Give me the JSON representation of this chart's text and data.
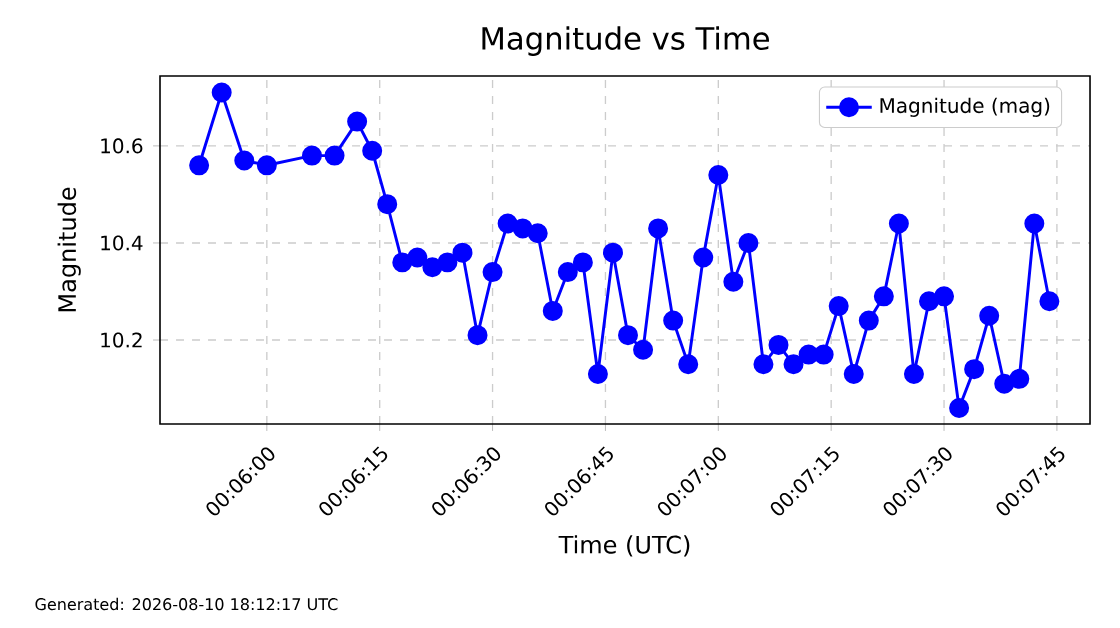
{
  "chart_data": {
    "type": "line",
    "title": "Magnitude vs Time",
    "xlabel": "Time (UTC)",
    "ylabel": "Magnitude",
    "annotations": [
      "Generated: 2026-08-10 18:12:17 UTC"
    ],
    "x": [
      0.0975,
      0.098333,
      0.099167,
      0.1,
      0.101667,
      0.1025,
      0.103333,
      0.103889,
      0.104444,
      0.105,
      0.105556,
      0.106111,
      0.106667,
      0.107222,
      0.107778,
      0.108333,
      0.108889,
      0.109444,
      0.11,
      0.110556,
      0.111111,
      0.111667,
      0.112222,
      0.112778,
      0.113333,
      0.113889,
      0.114444,
      0.115,
      0.115556,
      0.116111,
      0.116667,
      0.117222,
      0.117778,
      0.118333,
      0.118889,
      0.119444,
      0.12,
      0.120556,
      0.121111,
      0.121667,
      0.122222,
      0.122778,
      0.123333,
      0.123889,
      0.124444,
      0.125,
      0.125556,
      0.126111,
      0.126667,
      0.127222,
      0.127778,
      0.128333,
      0.128889
    ],
    "series": [
      {
        "name": "Magnitude (mag)",
        "color": "#0000ff",
        "values": [
          10.56,
          10.71,
          10.57,
          10.56,
          10.58,
          10.58,
          10.65,
          10.59,
          10.48,
          10.36,
          10.37,
          10.35,
          10.36,
          10.38,
          10.21,
          10.34,
          10.44,
          10.43,
          10.42,
          10.26,
          10.34,
          10.36,
          10.13,
          10.38,
          10.21,
          10.18,
          10.43,
          10.24,
          10.15,
          10.37,
          10.54,
          10.32,
          10.4,
          10.15,
          10.19,
          10.15,
          10.17,
          10.17,
          10.27,
          10.13,
          10.24,
          10.29,
          10.44,
          10.13,
          10.28,
          10.29,
          10.06,
          10.14,
          10.25,
          10.11,
          10.12,
          10.44,
          10.28
        ]
      }
    ],
    "xlim": [
      0.096056,
      0.130389
    ],
    "ylim": [
      10.027,
      10.744
    ],
    "xticks": [
      {
        "value": 0.1,
        "label": "00:06:00"
      },
      {
        "value": 0.104167,
        "label": "00:06:15"
      },
      {
        "value": 0.108333,
        "label": "00:06:30"
      },
      {
        "value": 0.1125,
        "label": "00:06:45"
      },
      {
        "value": 0.116667,
        "label": "00:07:00"
      },
      {
        "value": 0.120833,
        "label": "00:07:15"
      },
      {
        "value": 0.125,
        "label": "00:07:30"
      },
      {
        "value": 0.129167,
        "label": "00:07:45"
      }
    ],
    "yticks": [
      10.2,
      10.4,
      10.6
    ],
    "grid": true,
    "legend": "top right",
    "marker": "circle",
    "line_style": "solid"
  }
}
